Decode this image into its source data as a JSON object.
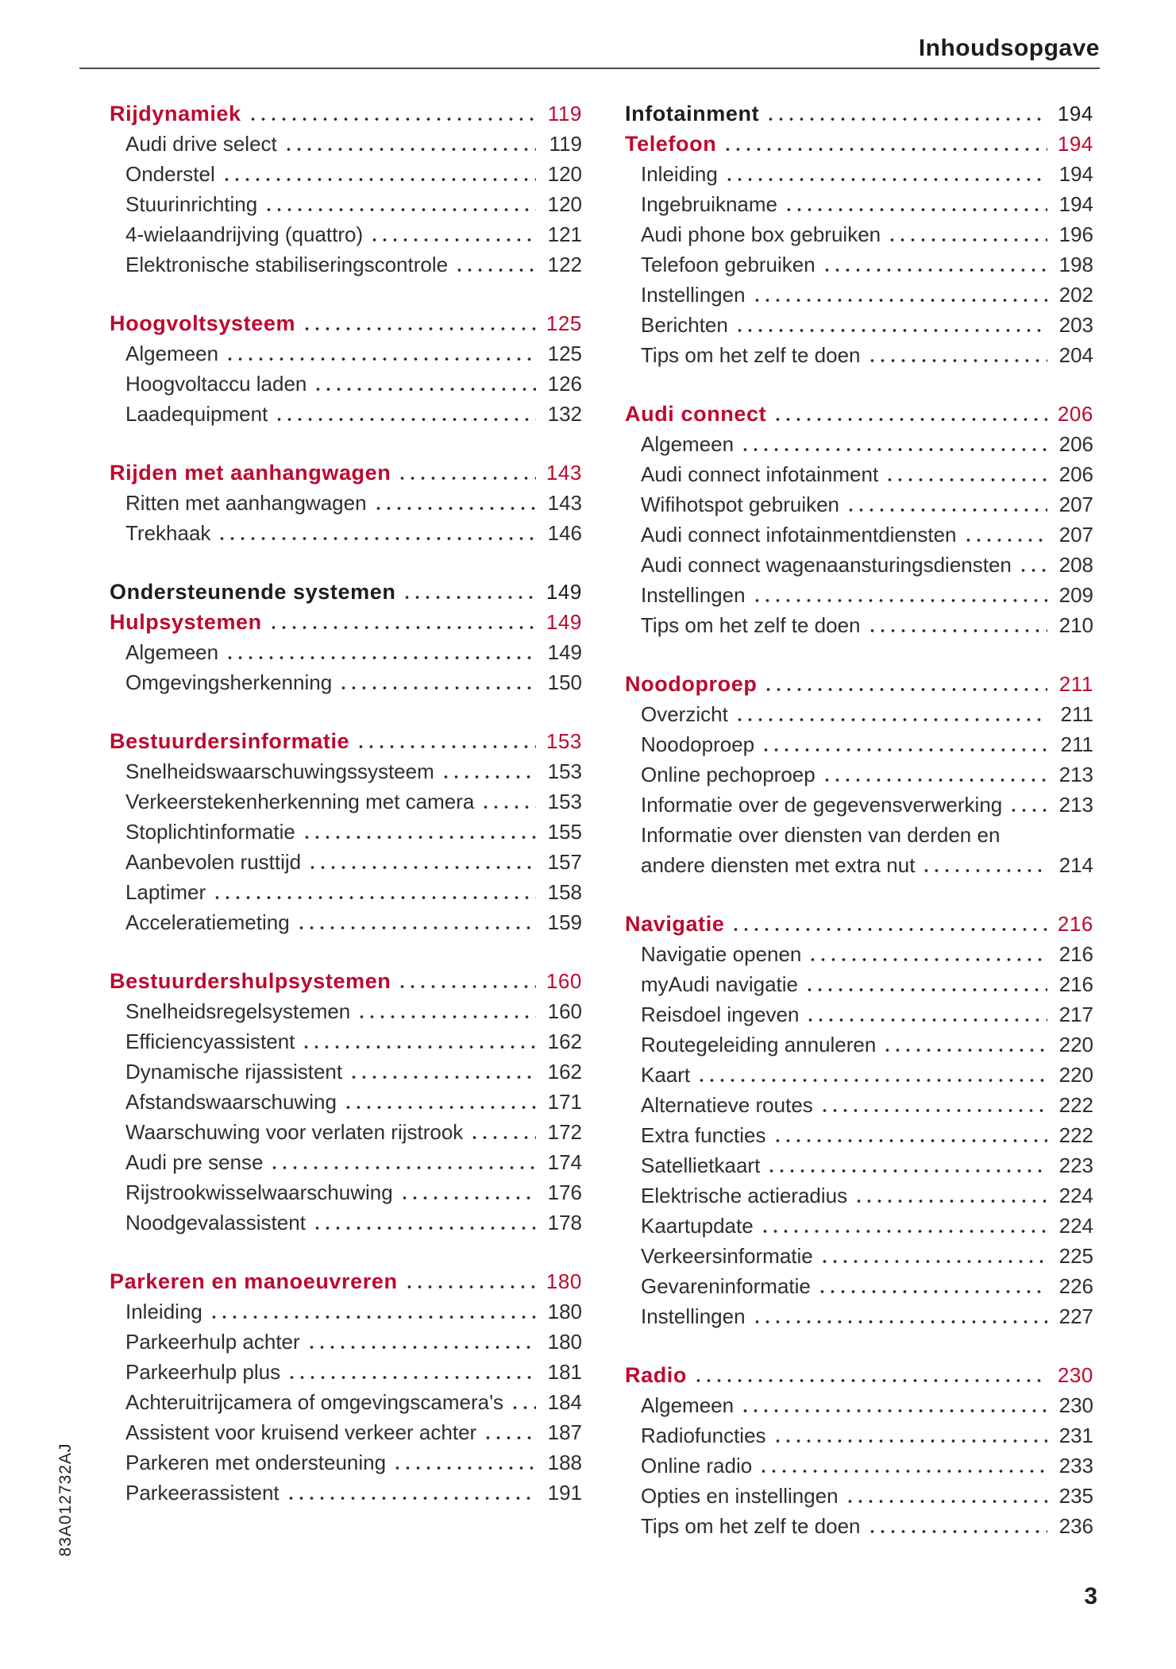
{
  "page": {
    "header_title": "Inhoudsopgave",
    "page_number": "3",
    "spine_code": "83A012732AJ"
  },
  "colors": {
    "accent_red": "#bb0a30",
    "heading_black": "#1d1d1b",
    "body_text": "#2e2e2a",
    "rule": "#4b4a47"
  },
  "columns": [
    {
      "sections": [
        {
          "rows": [
            {
              "label": "Rijdynamiek",
              "page": "119",
              "style": "heading-red"
            },
            {
              "label": "Audi drive select",
              "page": "119",
              "style": "item"
            },
            {
              "label": "Onderstel",
              "page": "120",
              "style": "item"
            },
            {
              "label": "Stuurinrichting",
              "page": "120",
              "style": "item"
            },
            {
              "label": "4-wielaandrijving (quattro)",
              "page": "121",
              "style": "item"
            },
            {
              "label": "Elektronische stabiliseringscontrole",
              "page": "122",
              "style": "item"
            }
          ]
        },
        {
          "rows": [
            {
              "label": "Hoogvoltsysteem",
              "page": "125",
              "style": "heading-red"
            },
            {
              "label": "Algemeen",
              "page": "125",
              "style": "item"
            },
            {
              "label": "Hoogvoltaccu laden",
              "page": "126",
              "style": "item"
            },
            {
              "label": "Laadequipment",
              "page": "132",
              "style": "item"
            }
          ]
        },
        {
          "rows": [
            {
              "label": "Rijden met aanhangwagen",
              "page": "143",
              "style": "heading-red"
            },
            {
              "label": "Ritten met aanhangwagen",
              "page": "143",
              "style": "item"
            },
            {
              "label": "Trekhaak",
              "page": "146",
              "style": "item"
            }
          ]
        },
        {
          "rows": [
            {
              "label": "Ondersteunende systemen",
              "page": "149",
              "style": "heading-black"
            },
            {
              "label": "Hulpsystemen",
              "page": "149",
              "style": "heading-red"
            },
            {
              "label": "Algemeen",
              "page": "149",
              "style": "item"
            },
            {
              "label": "Omgevingsherkenning",
              "page": "150",
              "style": "item"
            }
          ]
        },
        {
          "rows": [
            {
              "label": "Bestuurdersinformatie",
              "page": "153",
              "style": "heading-red"
            },
            {
              "label": "Snelheidswaarschuwingssysteem",
              "page": "153",
              "style": "item"
            },
            {
              "label": "Verkeerstekenherkenning met camera",
              "page": "153",
              "style": "item"
            },
            {
              "label": "Stoplichtinformatie",
              "page": "155",
              "style": "item"
            },
            {
              "label": "Aanbevolen rusttijd",
              "page": "157",
              "style": "item"
            },
            {
              "label": "Laptimer",
              "page": "158",
              "style": "item"
            },
            {
              "label": "Acceleratiemeting",
              "page": "159",
              "style": "item"
            }
          ]
        },
        {
          "rows": [
            {
              "label": "Bestuurdershulpsystemen",
              "page": "160",
              "style": "heading-red"
            },
            {
              "label": "Snelheidsregelsystemen",
              "page": "160",
              "style": "item"
            },
            {
              "label": "Efficiencyassistent",
              "page": "162",
              "style": "item"
            },
            {
              "label": "Dynamische rijassistent",
              "page": "162",
              "style": "item"
            },
            {
              "label": "Afstandswaarschuwing",
              "page": "171",
              "style": "item"
            },
            {
              "label": "Waarschuwing voor verlaten rijstrook",
              "page": "172",
              "style": "item"
            },
            {
              "label": "Audi pre sense",
              "page": "174",
              "style": "item"
            },
            {
              "label": "Rijstrookwisselwaarschuwing",
              "page": "176",
              "style": "item"
            },
            {
              "label": "Noodgevalassistent",
              "page": "178",
              "style": "item"
            }
          ]
        },
        {
          "rows": [
            {
              "label": "Parkeren en manoeuvreren",
              "page": "180",
              "style": "heading-red"
            },
            {
              "label": "Inleiding",
              "page": "180",
              "style": "item"
            },
            {
              "label": "Parkeerhulp achter",
              "page": "180",
              "style": "item"
            },
            {
              "label": "Parkeerhulp plus",
              "page": "181",
              "style": "item"
            },
            {
              "label": "Achteruitrijcamera of omgevingscamera's",
              "page": "184",
              "style": "item"
            },
            {
              "label": "Assistent voor kruisend verkeer achter",
              "page": "187",
              "style": "item"
            },
            {
              "label": "Parkeren met ondersteuning",
              "page": "188",
              "style": "item"
            },
            {
              "label": "Parkeerassistent",
              "page": "191",
              "style": "item"
            }
          ]
        }
      ]
    },
    {
      "sections": [
        {
          "rows": [
            {
              "label": "Infotainment",
              "page": "194",
              "style": "heading-black"
            },
            {
              "label": "Telefoon",
              "page": "194",
              "style": "heading-red"
            },
            {
              "label": "Inleiding",
              "page": "194",
              "style": "item"
            },
            {
              "label": "Ingebruikname",
              "page": "194",
              "style": "item"
            },
            {
              "label": "Audi phone box gebruiken",
              "page": "196",
              "style": "item"
            },
            {
              "label": "Telefoon gebruiken",
              "page": "198",
              "style": "item"
            },
            {
              "label": "Instellingen",
              "page": "202",
              "style": "item"
            },
            {
              "label": "Berichten",
              "page": "203",
              "style": "item"
            },
            {
              "label": "Tips om het zelf te doen",
              "page": "204",
              "style": "item"
            }
          ]
        },
        {
          "rows": [
            {
              "label": "Audi connect",
              "page": "206",
              "style": "heading-red"
            },
            {
              "label": "Algemeen",
              "page": "206",
              "style": "item"
            },
            {
              "label": "Audi connect infotainment",
              "page": "206",
              "style": "item"
            },
            {
              "label": "Wifihotspot gebruiken",
              "page": "207",
              "style": "item"
            },
            {
              "label": "Audi connect infotainmentdiensten",
              "page": "207",
              "style": "item"
            },
            {
              "label": "Audi connect wagenaansturingsdiensten",
              "page": "208",
              "style": "item"
            },
            {
              "label": "Instellingen",
              "page": "209",
              "style": "item"
            },
            {
              "label": "Tips om het zelf te doen",
              "page": "210",
              "style": "item"
            }
          ]
        },
        {
          "rows": [
            {
              "label": "Noodoproep",
              "page": "211",
              "style": "heading-red"
            },
            {
              "label": "Overzicht",
              "page": "211",
              "style": "item"
            },
            {
              "label": "Noodoproep",
              "page": "211",
              "style": "item"
            },
            {
              "label": "Online pechoproep",
              "page": "213",
              "style": "item"
            },
            {
              "label": "Informatie over de gegevensverwerking",
              "page": "213",
              "style": "item"
            },
            {
              "label": "Informatie over diensten van derden en",
              "page": "",
              "style": "item",
              "leader": false
            },
            {
              "label": "andere diensten met extra nut",
              "page": "214",
              "style": "item"
            }
          ]
        },
        {
          "rows": [
            {
              "label": "Navigatie",
              "page": "216",
              "style": "heading-red"
            },
            {
              "label": "Navigatie openen",
              "page": "216",
              "style": "item"
            },
            {
              "label": "myAudi navigatie",
              "page": "216",
              "style": "item"
            },
            {
              "label": "Reisdoel ingeven",
              "page": "217",
              "style": "item"
            },
            {
              "label": "Routegeleiding annuleren",
              "page": "220",
              "style": "item"
            },
            {
              "label": "Kaart",
              "page": "220",
              "style": "item"
            },
            {
              "label": "Alternatieve routes",
              "page": "222",
              "style": "item"
            },
            {
              "label": "Extra functies",
              "page": "222",
              "style": "item"
            },
            {
              "label": "Satellietkaart",
              "page": "223",
              "style": "item"
            },
            {
              "label": "Elektrische actieradius",
              "page": "224",
              "style": "item"
            },
            {
              "label": "Kaartupdate",
              "page": "224",
              "style": "item"
            },
            {
              "label": "Verkeersinformatie",
              "page": "225",
              "style": "item"
            },
            {
              "label": "Gevareninformatie",
              "page": "226",
              "style": "item"
            },
            {
              "label": "Instellingen",
              "page": "227",
              "style": "item"
            }
          ]
        },
        {
          "rows": [
            {
              "label": "Radio",
              "page": "230",
              "style": "heading-red"
            },
            {
              "label": "Algemeen",
              "page": "230",
              "style": "item"
            },
            {
              "label": "Radiofuncties",
              "page": "231",
              "style": "item"
            },
            {
              "label": "Online radio",
              "page": "233",
              "style": "item"
            },
            {
              "label": "Opties en instellingen",
              "page": "235",
              "style": "item"
            },
            {
              "label": "Tips om het zelf te doen",
              "page": "236",
              "style": "item"
            }
          ]
        }
      ]
    }
  ]
}
